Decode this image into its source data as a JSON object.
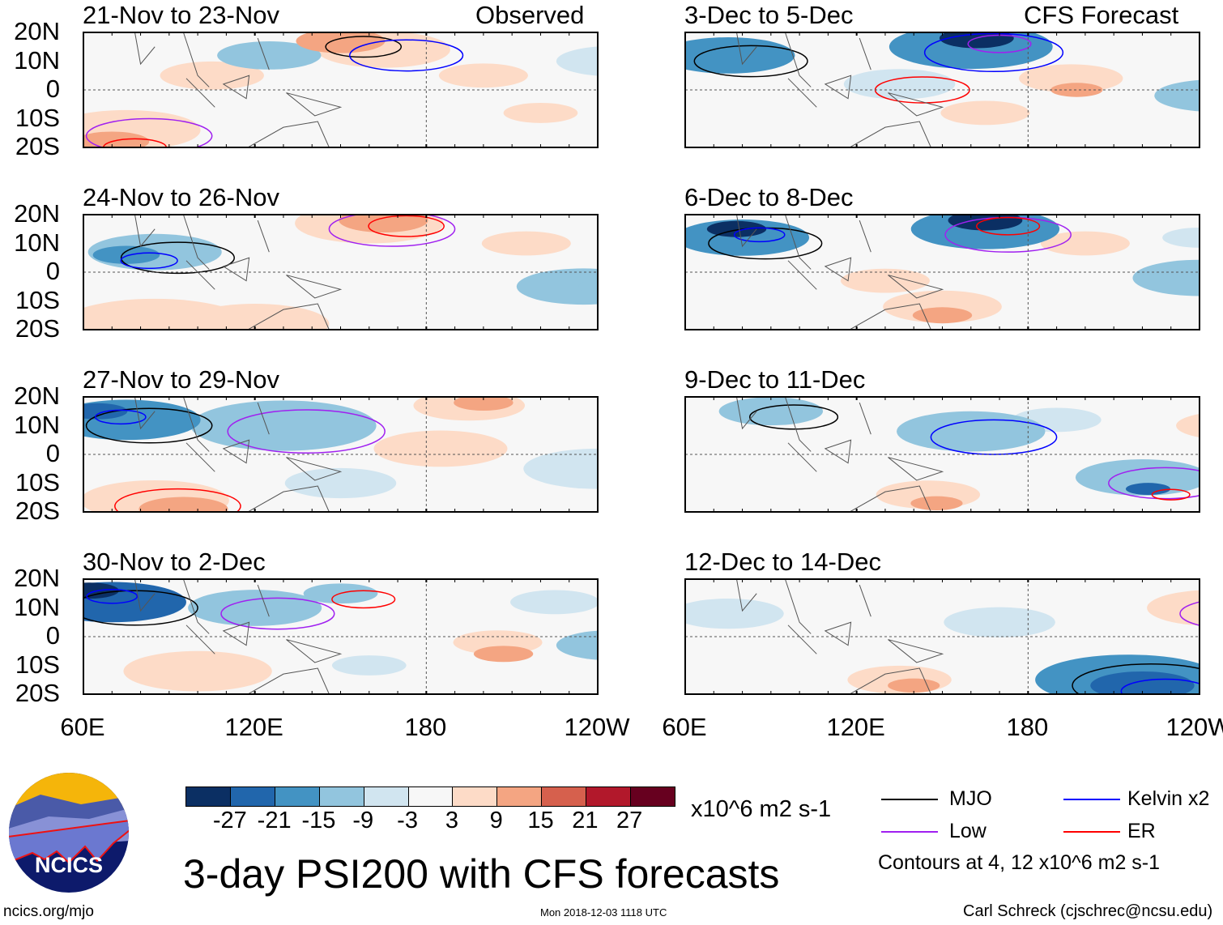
{
  "header": {
    "observed_label": "Observed",
    "forecast_label": "CFS Forecast"
  },
  "lat_labels": [
    "20N",
    "10N",
    "0",
    "10S",
    "20S"
  ],
  "lon_labels": [
    "60E",
    "120E",
    "180",
    "120W"
  ],
  "panels_observed": [
    {
      "title": "21-Nov to 23-Nov",
      "blobs": [
        [
          150,
          17,
          12,
          15
        ],
        [
          165,
          14,
          18,
          9
        ],
        [
          75,
          -14,
          20,
          9
        ],
        [
          70,
          -18,
          10,
          15
        ],
        [
          125,
          12,
          14,
          -9
        ],
        [
          200,
          5,
          12,
          6
        ],
        [
          220,
          -8,
          10,
          6
        ],
        [
          245,
          10,
          15,
          -3
        ],
        [
          105,
          5,
          14,
          6
        ]
      ]
    },
    {
      "title": "24-Nov to 26-Nov",
      "blobs": [
        [
          85,
          7,
          18,
          -9
        ],
        [
          75,
          6,
          9,
          -15
        ],
        [
          160,
          17,
          20,
          9
        ],
        [
          165,
          18,
          12,
          15
        ],
        [
          235,
          -5,
          18,
          -9
        ],
        [
          245,
          -5,
          9,
          -9
        ],
        [
          120,
          -18,
          20,
          6
        ],
        [
          85,
          -18,
          25,
          9
        ],
        [
          215,
          10,
          12,
          6
        ]
      ]
    },
    {
      "title": "27-Nov to 29-Nov",
      "blobs": [
        [
          75,
          12,
          20,
          -15
        ],
        [
          65,
          15,
          8,
          -21
        ],
        [
          130,
          10,
          25,
          -9
        ],
        [
          85,
          -16,
          20,
          9
        ],
        [
          95,
          -19,
          12,
          15
        ],
        [
          195,
          17,
          15,
          6
        ],
        [
          200,
          18,
          8,
          15
        ],
        [
          185,
          2,
          18,
          6
        ],
        [
          240,
          -5,
          20,
          -3
        ],
        [
          150,
          -10,
          15,
          -3
        ]
      ]
    },
    {
      "title": "30-Nov to 2-Dec",
      "blobs": [
        [
          70,
          12,
          20,
          -21
        ],
        [
          62,
          16,
          8,
          -27
        ],
        [
          120,
          10,
          18,
          -9
        ],
        [
          150,
          15,
          10,
          -9
        ],
        [
          205,
          -2,
          12,
          9
        ],
        [
          207,
          -6,
          8,
          15
        ],
        [
          245,
          -3,
          15,
          -9
        ],
        [
          100,
          -12,
          20,
          6
        ],
        [
          225,
          12,
          12,
          -3
        ],
        [
          160,
          -10,
          10,
          -3
        ]
      ]
    }
  ],
  "panels_forecast": [
    {
      "title": "3-Dec to 5-Dec",
      "blobs": [
        [
          75,
          12,
          18,
          -15
        ],
        [
          160,
          15,
          22,
          -15
        ],
        [
          162,
          18,
          10,
          -27
        ],
        [
          135,
          2,
          15,
          -3
        ],
        [
          195,
          4,
          14,
          9
        ],
        [
          197,
          0,
          7,
          15
        ],
        [
          245,
          -2,
          16,
          -9
        ],
        [
          85,
          -5,
          15,
          3
        ],
        [
          165,
          -8,
          12,
          6
        ]
      ]
    },
    {
      "title": "6-Dec to 8-Dec",
      "blobs": [
        [
          80,
          12,
          18,
          -15
        ],
        [
          78,
          15,
          8,
          -27
        ],
        [
          165,
          15,
          20,
          -15
        ],
        [
          165,
          18,
          10,
          -27
        ],
        [
          150,
          -12,
          16,
          9
        ],
        [
          150,
          -15,
          8,
          15
        ],
        [
          200,
          10,
          12,
          9
        ],
        [
          240,
          -2,
          18,
          -9
        ],
        [
          240,
          12,
          10,
          -3
        ],
        [
          130,
          -3,
          12,
          6
        ]
      ]
    },
    {
      "title": "9-Dec to 11-Dec",
      "blobs": [
        [
          90,
          15,
          14,
          -9
        ],
        [
          160,
          8,
          20,
          -9
        ],
        [
          220,
          -8,
          18,
          -9
        ],
        [
          222,
          -12,
          6,
          -21
        ],
        [
          145,
          -14,
          14,
          9
        ],
        [
          148,
          -17,
          7,
          15
        ],
        [
          250,
          10,
          14,
          9
        ],
        [
          252,
          13,
          6,
          15
        ],
        [
          190,
          12,
          12,
          -3
        ]
      ]
    },
    {
      "title": "12-Dec to 14-Dec",
      "blobs": [
        [
          215,
          -15,
          25,
          -15
        ],
        [
          220,
          -17,
          14,
          -21
        ],
        [
          245,
          10,
          18,
          9
        ],
        [
          252,
          10,
          9,
          15
        ],
        [
          255,
          10,
          4,
          21
        ],
        [
          135,
          -15,
          14,
          9
        ],
        [
          140,
          -17,
          7,
          15
        ],
        [
          75,
          8,
          15,
          -3
        ],
        [
          170,
          5,
          15,
          -3
        ]
      ]
    }
  ],
  "colorbar": {
    "colors": [
      "#0b2f63",
      "#2166ac",
      "#4393c3",
      "#92c5de",
      "#d1e5f0",
      "#f7f7f7",
      "#fddbc7",
      "#f4a582",
      "#d6604d",
      "#b2182b",
      "#67001f"
    ],
    "ticks": [
      "-27",
      "-21",
      "-15",
      "-9",
      "-3",
      "3",
      "9",
      "15",
      "21",
      "27"
    ],
    "units": "x10^6 m2 s-1"
  },
  "legend": {
    "items": [
      {
        "label": "MJO",
        "color": "#000000"
      },
      {
        "label": "Kelvin x2",
        "color": "#0000ff"
      },
      {
        "label": "Low",
        "color": "#a020f0"
      },
      {
        "label": "ER",
        "color": "#ff0000"
      }
    ],
    "note": "Contours at 4, 12 x10^6 m2 s-1"
  },
  "footer": {
    "title": "3-day PSI200 with CFS forecasts",
    "logo_text": "NCICS",
    "url": "ncics.org/mjo",
    "timestamp": "Mon 2018-12-03 1118 UTC",
    "author": "Carl Schreck (cjschrec@ncsu.edu)"
  }
}
